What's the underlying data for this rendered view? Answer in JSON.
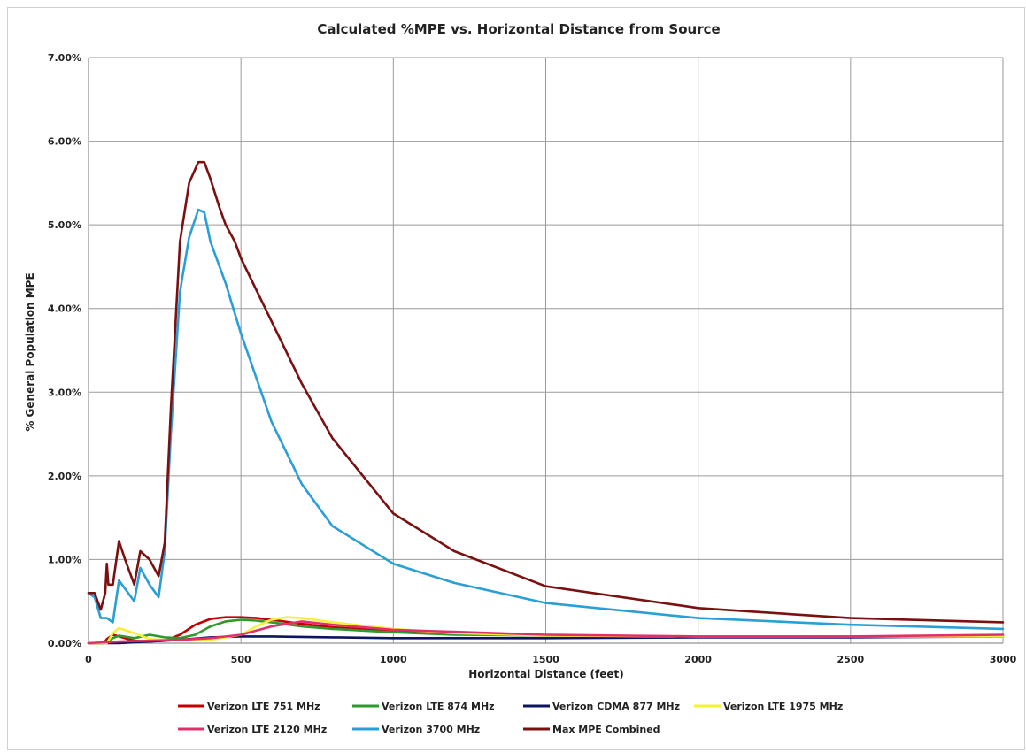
{
  "chart_data": {
    "type": "line",
    "title": "Calculated %MPE vs. Horizontal Distance from Source",
    "xlabel": "Horizontal Distance (feet)",
    "ylabel": "% General Population MPE",
    "xlim": [
      0,
      3000
    ],
    "ylim": [
      0,
      7
    ],
    "xticks": [
      0,
      500,
      1000,
      1500,
      2000,
      2500,
      3000
    ],
    "xtick_labels": [
      "0",
      "500",
      "1000",
      "1500",
      "2000",
      "2500",
      "3000"
    ],
    "yticks": [
      0,
      1,
      2,
      3,
      4,
      5,
      6,
      7
    ],
    "ytick_labels": [
      "0.00%",
      "1.00%",
      "2.00%",
      "3.00%",
      "4.00%",
      "5.00%",
      "6.00%",
      "7.00%"
    ],
    "grid": true,
    "legend_position": "bottom",
    "series": [
      {
        "name": "Verizon LTE 751 MHz",
        "color": "#c00000",
        "x": [
          0,
          50,
          60,
          80,
          100,
          150,
          200,
          250,
          300,
          350,
          400,
          450,
          500,
          550,
          600,
          700,
          800,
          1000,
          1200,
          1500,
          2000,
          2500,
          3000
        ],
        "y": [
          0,
          0,
          0.05,
          0.1,
          0.08,
          0.03,
          0.02,
          0.03,
          0.1,
          0.22,
          0.29,
          0.31,
          0.31,
          0.3,
          0.28,
          0.23,
          0.19,
          0.14,
          0.11,
          0.09,
          0.08,
          0.08,
          0.08
        ]
      },
      {
        "name": "Verizon LTE 874 MHz",
        "color": "#2e9a2e",
        "x": [
          0,
          50,
          80,
          100,
          150,
          200,
          250,
          300,
          350,
          400,
          450,
          500,
          550,
          600,
          700,
          800,
          1000,
          1200,
          1500,
          2000,
          2500,
          3000
        ],
        "y": [
          0,
          0,
          0.06,
          0.09,
          0.06,
          0.1,
          0.07,
          0.06,
          0.1,
          0.2,
          0.26,
          0.28,
          0.27,
          0.25,
          0.2,
          0.17,
          0.13,
          0.1,
          0.09,
          0.08,
          0.08,
          0.08
        ]
      },
      {
        "name": "Verizon CDMA 877 MHz",
        "color": "#0d1560",
        "x": [
          0,
          100,
          200,
          300,
          400,
          500,
          600,
          800,
          1000,
          1500,
          2000,
          2500,
          3000
        ],
        "y": [
          0,
          0,
          0.02,
          0.04,
          0.07,
          0.08,
          0.08,
          0.07,
          0.06,
          0.06,
          0.07,
          0.07,
          0.08
        ]
      },
      {
        "name": "Verizon LTE 1975 MHz",
        "color": "#f5f03a",
        "x": [
          0,
          60,
          80,
          100,
          150,
          200,
          300,
          400,
          500,
          550,
          600,
          650,
          700,
          800,
          1000,
          1200,
          1500,
          2000,
          2500,
          3000
        ],
        "y": [
          0,
          0,
          0.12,
          0.18,
          0.12,
          0.05,
          0.03,
          0.04,
          0.1,
          0.2,
          0.28,
          0.31,
          0.3,
          0.25,
          0.17,
          0.12,
          0.09,
          0.08,
          0.08,
          0.08
        ]
      },
      {
        "name": "Verizon LTE 2120 MHz",
        "color": "#e0306a",
        "x": [
          0,
          100,
          200,
          300,
          400,
          500,
          600,
          700,
          800,
          1000,
          1500,
          2000,
          2500,
          3000
        ],
        "y": [
          0,
          0.02,
          0.03,
          0.04,
          0.06,
          0.1,
          0.2,
          0.26,
          0.22,
          0.16,
          0.1,
          0.08,
          0.08,
          0.1
        ]
      },
      {
        "name": "Verizon 3700 MHz",
        "color": "#2a9fd6",
        "x": [
          0,
          20,
          40,
          60,
          80,
          100,
          120,
          150,
          170,
          200,
          230,
          250,
          270,
          300,
          330,
          360,
          380,
          400,
          450,
          500,
          600,
          700,
          800,
          1000,
          1200,
          1500,
          2000,
          2500,
          3000
        ],
        "y": [
          0.6,
          0.55,
          0.3,
          0.3,
          0.25,
          0.75,
          0.65,
          0.5,
          0.9,
          0.7,
          0.55,
          1.1,
          2.5,
          4.2,
          4.85,
          5.18,
          5.15,
          4.8,
          4.3,
          3.7,
          2.65,
          1.9,
          1.4,
          0.95,
          0.72,
          0.48,
          0.3,
          0.22,
          0.17
        ]
      },
      {
        "name": "Max MPE Combined",
        "color": "#7b1010",
        "x": [
          0,
          20,
          40,
          55,
          60,
          65,
          80,
          100,
          120,
          150,
          170,
          200,
          230,
          250,
          270,
          300,
          330,
          360,
          380,
          400,
          430,
          450,
          480,
          500,
          600,
          700,
          800,
          1000,
          1200,
          1500,
          2000,
          2500,
          3000
        ],
        "y": [
          0.6,
          0.6,
          0.4,
          0.6,
          0.95,
          0.7,
          0.7,
          1.22,
          1.0,
          0.7,
          1.1,
          1.0,
          0.8,
          1.2,
          2.8,
          4.8,
          5.5,
          5.75,
          5.75,
          5.55,
          5.2,
          5.0,
          4.8,
          4.6,
          3.85,
          3.1,
          2.45,
          1.55,
          1.1,
          0.68,
          0.42,
          0.3,
          0.25
        ]
      }
    ]
  }
}
